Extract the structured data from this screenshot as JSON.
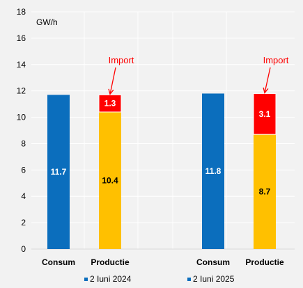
{
  "chart_data": {
    "type": "bar",
    "stacked": true,
    "unit_label": "GW/h",
    "ylim": [
      0,
      18
    ],
    "yticks": [
      0,
      2,
      4,
      6,
      8,
      10,
      12,
      14,
      16,
      18
    ],
    "grid": true,
    "legend_position": "bottom",
    "groups": [
      {
        "name": "2 Iuni 2024",
        "bars": [
          {
            "category": "Consum",
            "segments": [
              {
                "value": 11.7,
                "label": "11.7",
                "color": "#0b6ebd",
                "label_color": "#ffffff"
              }
            ]
          },
          {
            "category": "Productie",
            "segments": [
              {
                "value": 10.4,
                "label": "10.4",
                "color": "#ffc000",
                "label_color": "#000000"
              },
              {
                "value": 1.3,
                "label": "1.3",
                "color": "#ff0000",
                "label_color": "#ffffff"
              }
            ]
          }
        ]
      },
      {
        "name": "2 Iuni 2025",
        "bars": [
          {
            "category": "Consum",
            "segments": [
              {
                "value": 11.8,
                "label": "11.8",
                "color": "#0b6ebd",
                "label_color": "#ffffff"
              }
            ]
          },
          {
            "category": "Productie",
            "segments": [
              {
                "value": 8.7,
                "label": "8.7",
                "color": "#ffc000",
                "label_color": "#000000"
              },
              {
                "value": 3.1,
                "label": "3.1",
                "color": "#ff0000",
                "label_color": "#ffffff"
              }
            ]
          }
        ]
      }
    ],
    "annotations": [
      {
        "text": "Import",
        "group": 0,
        "color": "#ff0000"
      },
      {
        "text": "Import",
        "group": 1,
        "color": "#ff0000"
      }
    ],
    "legend": [
      {
        "label": "2 Iuni 2024",
        "color": "#0b6ebd"
      },
      {
        "label": "2 Iuni 2025",
        "color": "#0b6ebd"
      }
    ]
  }
}
